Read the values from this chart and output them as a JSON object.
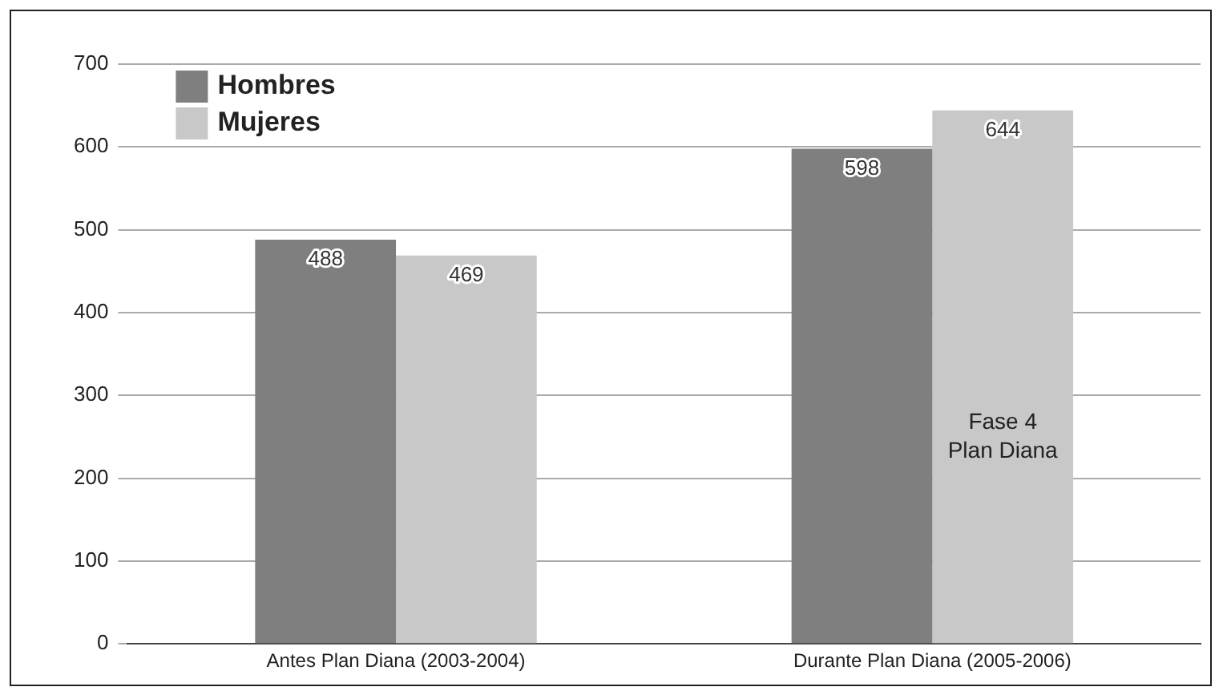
{
  "chart_data": {
    "type": "bar",
    "categories": [
      "Antes Plan Diana (2003-2004)",
      "Durante Plan Diana (2005-2006)"
    ],
    "series": [
      {
        "name": "Hombres",
        "color": "#7f7f7f",
        "values": [
          488,
          598
        ]
      },
      {
        "name": "Mujeres",
        "color": "#c8c8c8",
        "values": [
          469,
          644
        ]
      }
    ],
    "ylim": [
      0,
      700
    ],
    "yticks": [
      0,
      100,
      200,
      300,
      400,
      500,
      600,
      700
    ],
    "grid": "y",
    "legend": "top left",
    "data_labels": true,
    "annotations": [
      {
        "text": "Fase 4\nPlan Diana",
        "x": "Durante Plan Diana (2005-2006)",
        "y": 250
      }
    ]
  }
}
